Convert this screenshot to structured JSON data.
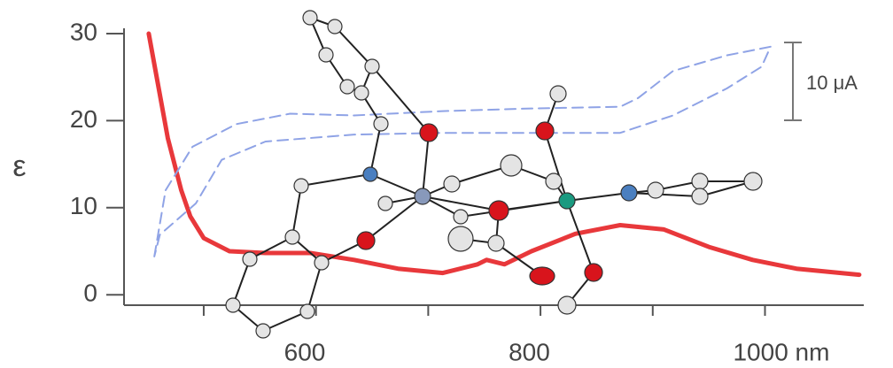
{
  "chart_data": {
    "type": "line",
    "ylabel": "ε",
    "xlim": [
      429,
      1088
    ],
    "ylim": [
      -1.2,
      30
    ],
    "yticks": [
      0,
      10,
      20,
      30
    ],
    "xticks": [
      600,
      800,
      {
        "value": 1000,
        "label": "1000 nm"
      }
    ],
    "x_minor_ticks": [
      500,
      700,
      900
    ],
    "series": [
      {
        "color": "#e8383b",
        "dash": false,
        "x": [
          451,
          468,
          480,
          488,
          500,
          523,
          555,
          595,
          634,
          673,
          713,
          744,
          752,
          768,
          792,
          831,
          871,
          910,
          950,
          989,
          1028,
          1084
        ],
        "values": [
          30,
          18,
          12,
          9,
          6.5,
          5,
          4.8,
          4.8,
          4,
          3,
          2.5,
          3.5,
          4,
          3.5,
          5,
          7,
          8,
          7.5,
          5.5,
          4,
          3,
          2.3
        ]
      },
      {
        "color": "#8fa3e6",
        "dash": true,
        "x": [
          456,
          466,
          490,
          529,
          577,
          634,
          713,
          792,
          871,
          887,
          918,
          966,
          1005,
          997,
          966,
          918,
          871,
          792,
          713,
          634,
          555,
          516,
          493,
          461,
          456
        ],
        "values": [
          4.4,
          12,
          17,
          19.6,
          20.8,
          20.6,
          21.1,
          21.4,
          21.6,
          22.6,
          25.7,
          27.5,
          28.5,
          26.2,
          23.7,
          20.6,
          18.6,
          18.6,
          18.6,
          18.4,
          17.6,
          15.5,
          10.5,
          6.9,
          4.4
        ]
      }
    ],
    "scale_bar": {
      "label": "10 μA"
    }
  }
}
